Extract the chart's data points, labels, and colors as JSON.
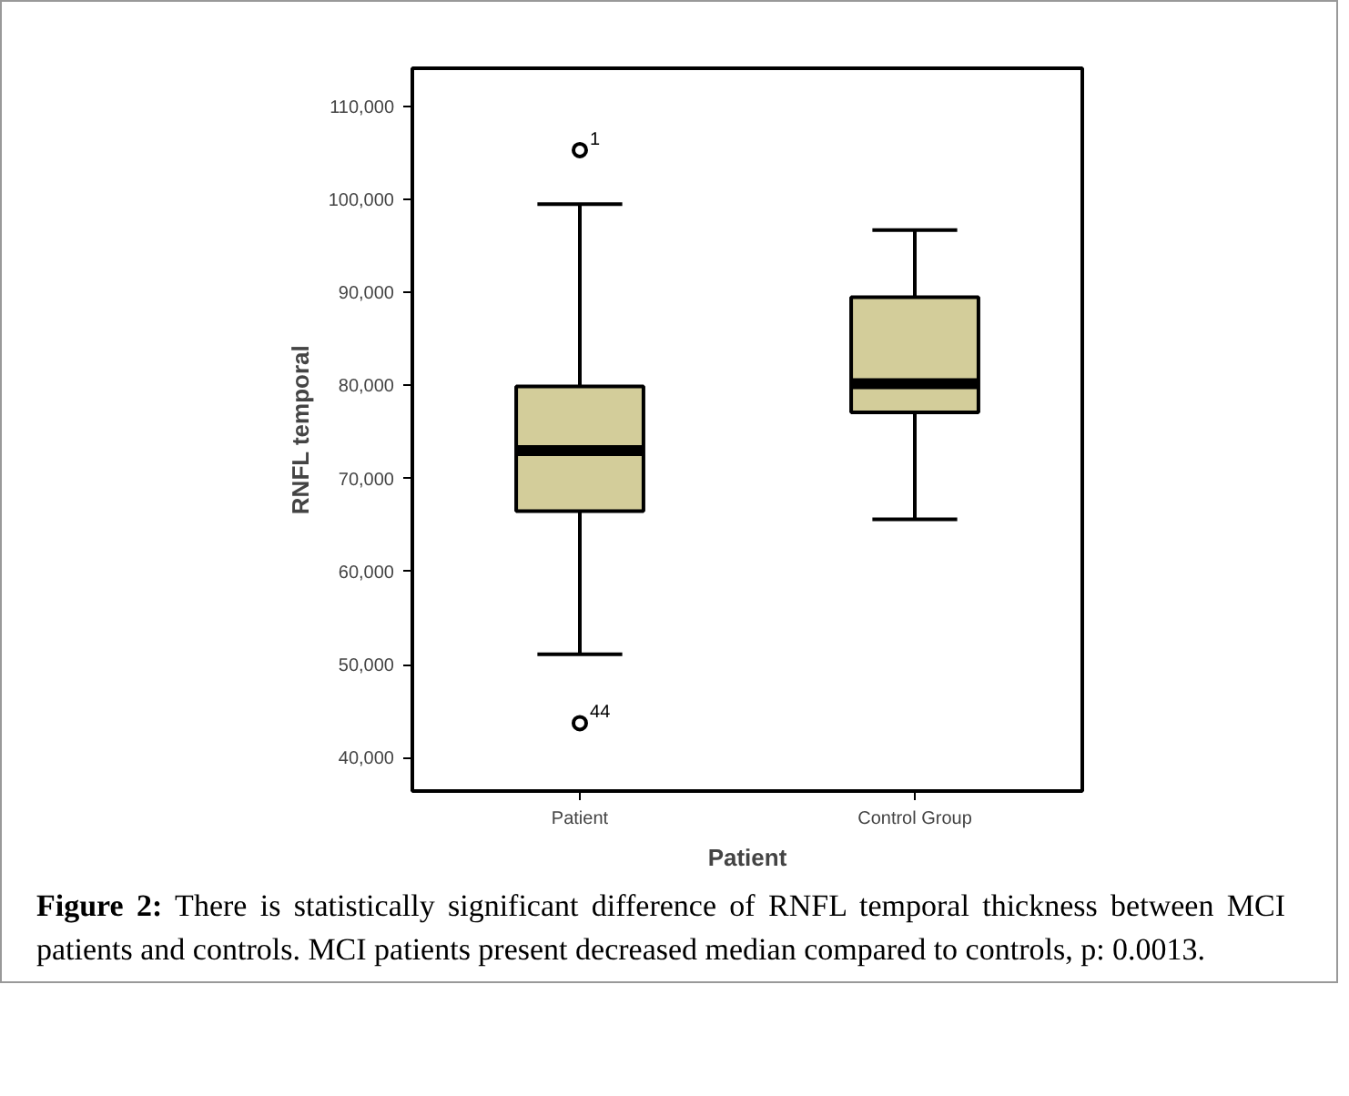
{
  "chart_data": {
    "type": "box",
    "xlabel": "Patient",
    "ylabel": "RNFL temporal",
    "categories": [
      "Patient",
      "Control Group"
    ],
    "boxes": [
      {
        "low": 51100,
        "q1": 66500,
        "median": 73000,
        "q3": 79900,
        "high": 99500,
        "outliers": [
          105300,
          43700
        ]
      },
      {
        "low": 65600,
        "q1": 77100,
        "median": 80200,
        "q3": 89500,
        "high": 96700
      }
    ],
    "color": "#d3cd9a",
    "ylim": [
      36400,
      114100
    ],
    "yticks": [
      {
        "value": 40000,
        "label": "40,000"
      },
      {
        "value": 50000,
        "label": "50,000"
      },
      {
        "value": 60000,
        "label": "60,000"
      },
      {
        "value": 70000,
        "label": "70,000"
      },
      {
        "value": 80000,
        "label": "80,000"
      },
      {
        "value": 90000,
        "label": "90,000"
      },
      {
        "value": 100000,
        "label": "100,000"
      },
      {
        "value": 110000,
        "label": "110,000"
      }
    ],
    "grid": false,
    "annotations": [
      "1",
      "44",
      "Figure 2: There is statistically significant difference of RNFL temporal thickness between MCI patients and controls. MCI patients present decreased median compared to controls, p: 0.0013."
    ]
  }
}
